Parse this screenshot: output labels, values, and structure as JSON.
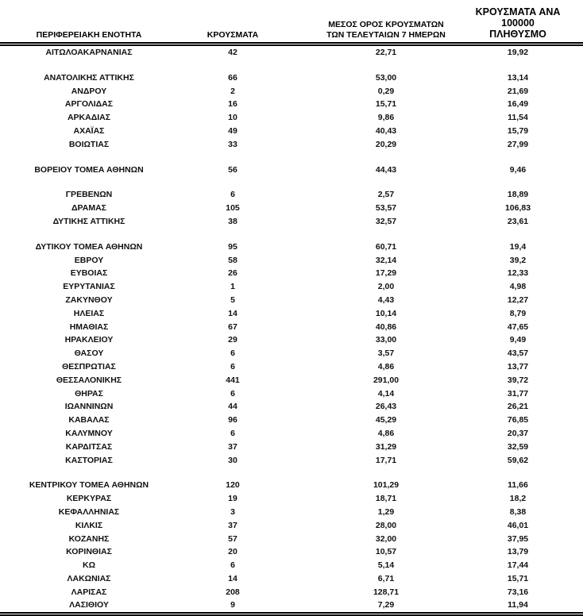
{
  "colors": {
    "text": "#000000",
    "background": "#ffffff",
    "rule": "#000000"
  },
  "table": {
    "columns": [
      {
        "label": "ΠΕΡΙΦΕΡΕΙΑΚΗ ΕΝΟΤΗΤΑ"
      },
      {
        "label": "ΚΡΟΥΣΜΑΤΑ"
      },
      {
        "label": "ΜΕΣΟΣ ΟΡΟΣ ΚΡΟΥΣΜΑΤΩΝ\nΤΩΝ ΤΕΛΕΥΤΑΙΩΝ 7 ΗΜΕΡΩΝ"
      },
      {
        "label": "ΚΡΟΥΣΜΑΤΑ ΑΝΑ 100000\nΠΛΗΘΥΣΜΟ"
      }
    ],
    "groups": [
      {
        "rows": [
          [
            "ΑΙΤΩΛΟΑΚΑΡΝΑΝΙΑΣ",
            "42",
            "22,71",
            "19,92"
          ]
        ]
      },
      {
        "rows": [
          [
            "ΑΝΑΤΟΛΙΚΗΣ ΑΤΤΙΚΗΣ",
            "66",
            "53,00",
            "13,14"
          ],
          [
            "ΑΝΔΡΟΥ",
            "2",
            "0,29",
            "21,69"
          ],
          [
            "ΑΡΓΟΛΙΔΑΣ",
            "16",
            "15,71",
            "16,49"
          ],
          [
            "ΑΡΚΑΔΙΑΣ",
            "10",
            "9,86",
            "11,54"
          ],
          [
            "ΑΧΑΪΑΣ",
            "49",
            "40,43",
            "15,79"
          ],
          [
            "ΒΟΙΩΤΙΑΣ",
            "33",
            "20,29",
            "27,99"
          ]
        ]
      },
      {
        "rows": [
          [
            "ΒΟΡΕΙΟΥ ΤΟΜΕΑ ΑΘΗΝΩΝ",
            "56",
            "44,43",
            "9,46"
          ]
        ]
      },
      {
        "rows": [
          [
            "ΓΡΕΒΕΝΩΝ",
            "6",
            "2,57",
            "18,89"
          ],
          [
            "ΔΡΑΜΑΣ",
            "105",
            "53,57",
            "106,83"
          ],
          [
            "ΔΥΤΙΚΗΣ ΑΤΤΙΚΗΣ",
            "38",
            "32,57",
            "23,61"
          ]
        ]
      },
      {
        "rows": [
          [
            "ΔΥΤΙΚΟΥ ΤΟΜΕΑ ΑΘΗΝΩΝ",
            "95",
            "60,71",
            "19,4"
          ],
          [
            "ΕΒΡΟΥ",
            "58",
            "32,14",
            "39,2"
          ],
          [
            "ΕΥΒΟΙΑΣ",
            "26",
            "17,29",
            "12,33"
          ],
          [
            "ΕΥΡΥΤΑΝΙΑΣ",
            "1",
            "2,00",
            "4,98"
          ],
          [
            "ΖΑΚΥΝΘΟΥ",
            "5",
            "4,43",
            "12,27"
          ],
          [
            "ΗΛΕΙΑΣ",
            "14",
            "10,14",
            "8,79"
          ],
          [
            "ΗΜΑΘΙΑΣ",
            "67",
            "40,86",
            "47,65"
          ],
          [
            "ΗΡΑΚΛΕΙΟΥ",
            "29",
            "33,00",
            "9,49"
          ],
          [
            "ΘΑΣΟΥ",
            "6",
            "3,57",
            "43,57"
          ],
          [
            "ΘΕΣΠΡΩΤΙΑΣ",
            "6",
            "4,86",
            "13,77"
          ],
          [
            "ΘΕΣΣΑΛΟΝΙΚΗΣ",
            "441",
            "291,00",
            "39,72"
          ],
          [
            "ΘΗΡΑΣ",
            "6",
            "4,14",
            "31,77"
          ],
          [
            "ΙΩΑΝΝΙΝΩΝ",
            "44",
            "26,43",
            "26,21"
          ],
          [
            "ΚΑΒΑΛΑΣ",
            "96",
            "45,29",
            "76,85"
          ],
          [
            "ΚΑΛΥΜΝΟΥ",
            "6",
            "4,86",
            "20,37"
          ],
          [
            "ΚΑΡΔΙΤΣΑΣ",
            "37",
            "31,29",
            "32,59"
          ],
          [
            "ΚΑΣΤΟΡΙΑΣ",
            "30",
            "17,71",
            "59,62"
          ]
        ]
      },
      {
        "rows": [
          [
            "ΚΕΝΤΡΙΚΟΥ ΤΟΜΕΑ ΑΘΗΝΩΝ",
            "120",
            "101,29",
            "11,66"
          ],
          [
            "ΚΕΡΚΥΡΑΣ",
            "19",
            "18,71",
            "18,2"
          ],
          [
            "ΚΕΦΑΛΛΗΝΙΑΣ",
            "3",
            "1,29",
            "8,38"
          ],
          [
            "ΚΙΛΚΙΣ",
            "37",
            "28,00",
            "46,01"
          ],
          [
            "ΚΟΖΑΝΗΣ",
            "57",
            "32,00",
            "37,95"
          ],
          [
            "ΚΟΡΙΝΘΙΑΣ",
            "20",
            "10,57",
            "13,79"
          ],
          [
            "ΚΩ",
            "6",
            "5,14",
            "17,44"
          ],
          [
            "ΛΑΚΩΝΙΑΣ",
            "14",
            "6,71",
            "15,71"
          ],
          [
            "ΛΑΡΙΣΑΣ",
            "208",
            "128,71",
            "73,16"
          ],
          [
            "ΛΑΣΙΘΙΟΥ",
            "9",
            "7,29",
            "11,94"
          ]
        ]
      }
    ]
  }
}
